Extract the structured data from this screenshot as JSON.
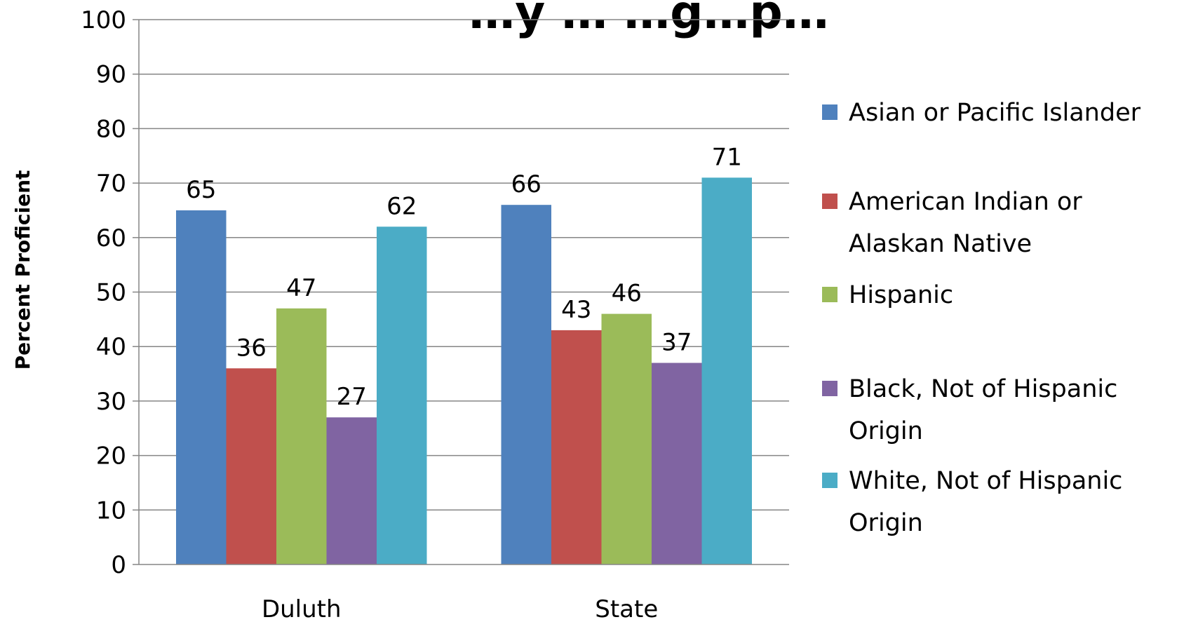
{
  "chart_data": {
    "type": "bar",
    "title": "…y … …g…p…",
    "xlabel": "",
    "ylabel": "Percent Proficient",
    "ylim": [
      0,
      100
    ],
    "yticks": [
      0,
      10,
      20,
      30,
      40,
      50,
      60,
      70,
      80,
      90,
      100
    ],
    "grid": true,
    "legend_position": "right",
    "categories": [
      "Duluth",
      "State"
    ],
    "series": [
      {
        "name": "Asian or Pacific Islander",
        "color": "#4F81BD",
        "values": [
          65,
          66
        ],
        "legend_lines": [
          "Asian or Pacific Islander"
        ]
      },
      {
        "name": "American Indian or Alaskan Native",
        "color": "#C0504D",
        "values": [
          36,
          43
        ],
        "legend_lines": [
          "American Indian or",
          "Alaskan Native"
        ]
      },
      {
        "name": "Hispanic",
        "color": "#9BBB59",
        "values": [
          47,
          46
        ],
        "legend_lines": [
          "Hispanic"
        ]
      },
      {
        "name": "Black, Not of Hispanic Origin",
        "color": "#8064A2",
        "values": [
          27,
          37
        ],
        "legend_lines": [
          "Black, Not of Hispanic",
          "Origin"
        ]
      },
      {
        "name": "White, Not of Hispanic Origin",
        "color": "#4BACC6",
        "values": [
          62,
          71
        ],
        "legend_lines": [
          "White, Not of Hispanic",
          "Origin"
        ]
      }
    ]
  }
}
